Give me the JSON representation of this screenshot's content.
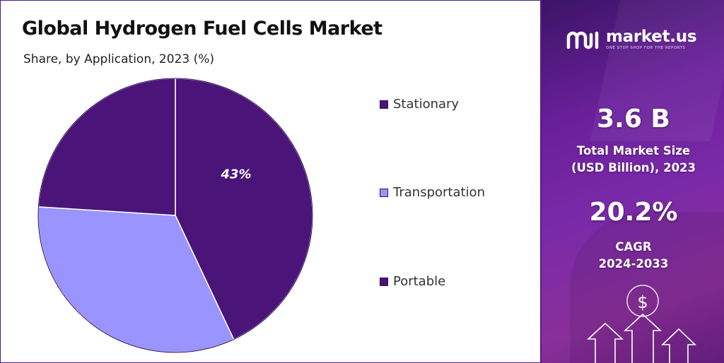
{
  "title": "Global Hydrogen Fuel Cells Market",
  "subtitle": "Share, by Application, 2023 (%)",
  "chart_data": {
    "type": "pie",
    "title": "Global Hydrogen Fuel Cells Market",
    "subtitle": "Share, by Application, 2023 (%)",
    "categories": [
      "Stationary",
      "Transportation",
      "Portable"
    ],
    "values": [
      43,
      33,
      24
    ],
    "colors": [
      "#4a1478",
      "#9a94ff",
      "#4a1478"
    ],
    "data_labels": [
      "43%",
      "",
      ""
    ],
    "start_angle_deg": 0,
    "direction": "clockwise",
    "legend_position": "right"
  },
  "legend": [
    {
      "label": "Stationary",
      "color": "#4a1478"
    },
    {
      "label": "Transportation",
      "color": "#9a94ff"
    },
    {
      "label": "Portable",
      "color": "#4a1478"
    }
  ],
  "brand": {
    "name": "market.us",
    "tagline": "ONE STOP SHOP FOR THE REPORTS",
    "logo_icon": "market-us-logo-icon"
  },
  "stats": {
    "market_size_value": "3.6 B",
    "market_size_label_line1": "Total Market Size",
    "market_size_label_line2": "(USD Billion), 2023",
    "cagr_value": "20.2%",
    "cagr_label_line1": "CAGR",
    "cagr_label_line2": "2024-2033"
  },
  "decor": {
    "dollar_symbol": "$",
    "arrow_icon": "up-arrow-icon"
  }
}
